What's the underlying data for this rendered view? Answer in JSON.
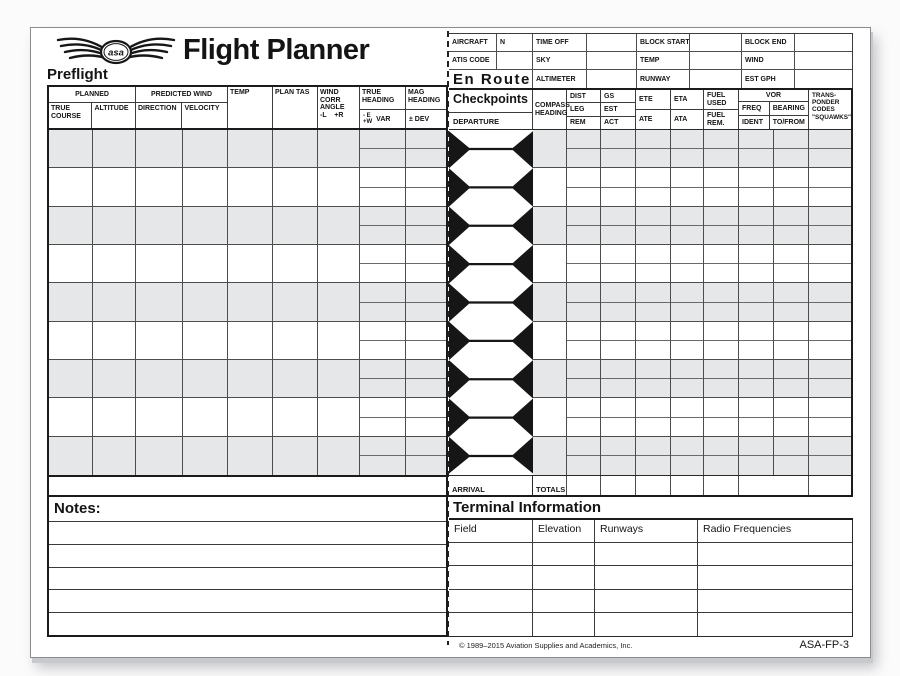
{
  "colors": {
    "paper": "#ffffff",
    "ink": "#141414",
    "row_shade": "#e6e7e9",
    "hex_black": "#161616"
  },
  "header": {
    "title": "Flight Planner",
    "logo_text": "asa",
    "preflight_label": "Preflight"
  },
  "info_grid": {
    "row1": [
      "AIRCRAFT",
      "N",
      "TIME OFF",
      "",
      "BLOCK START",
      "",
      "BLOCK END",
      ""
    ],
    "row2": [
      "ATIS CODE",
      "",
      "SKY",
      "",
      "TEMP",
      "",
      "WIND",
      ""
    ],
    "row3": [
      "En Route",
      "ALTIMETER",
      "",
      "RUNWAY",
      "",
      "EST GPH",
      ""
    ]
  },
  "preflight": {
    "groups": {
      "planned": "PLANNED",
      "predicted_wind": "PREDICTED WIND"
    },
    "cols": {
      "true_course": "TRUE COURSE",
      "altitude": "ALTITUDE",
      "direction": "DIRECTION",
      "velocity": "VELOCITY",
      "temp": "TEMP",
      "plan_tas": "PLAN TAS",
      "wind_corr_angle": "WIND CORR ANGLE",
      "wind_corr_sub": "-L    +R",
      "true_heading": "TRUE HEADING",
      "true_heading_minus_e": "- E",
      "true_heading_plus_w": "+W",
      "true_heading_var": "VAR",
      "mag_heading": "MAG HEADING",
      "mag_heading_sub": "± DEV"
    }
  },
  "enroute": {
    "checkpoints_label": "Checkpoints",
    "departure_label": "DEPARTURE",
    "arrival_label": "ARRIVAL",
    "totals_label": "TOTALS",
    "cols": {
      "compass_heading": "COMPASS HEADING",
      "dist": "DIST",
      "leg": "LEG",
      "rem": "REM",
      "gs": "GS",
      "est": "EST",
      "act": "ACT",
      "ete": "ETE",
      "ate": "ATE",
      "eta": "ETA",
      "ata": "ATA",
      "fuel_used": "FUEL USED",
      "fuel_rem": "FUEL REM.",
      "vor": "VOR",
      "freq": "FREQ",
      "ident": "IDENT",
      "bearing": "BEARING",
      "to_from": "TO/FROM",
      "transponder": "TRANS-\nPONDER\nCODES\n\"SQUAWKS\""
    }
  },
  "notes": {
    "title": "Notes:"
  },
  "terminal": {
    "title": "Terminal Information",
    "cols": [
      "Field",
      "Elevation",
      "Runways",
      "Radio Frequencies"
    ]
  },
  "footer": {
    "copyright": "© 1989–2015 Aviation Supplies and Academics, Inc.",
    "form_number": "ASA-FP-3"
  }
}
